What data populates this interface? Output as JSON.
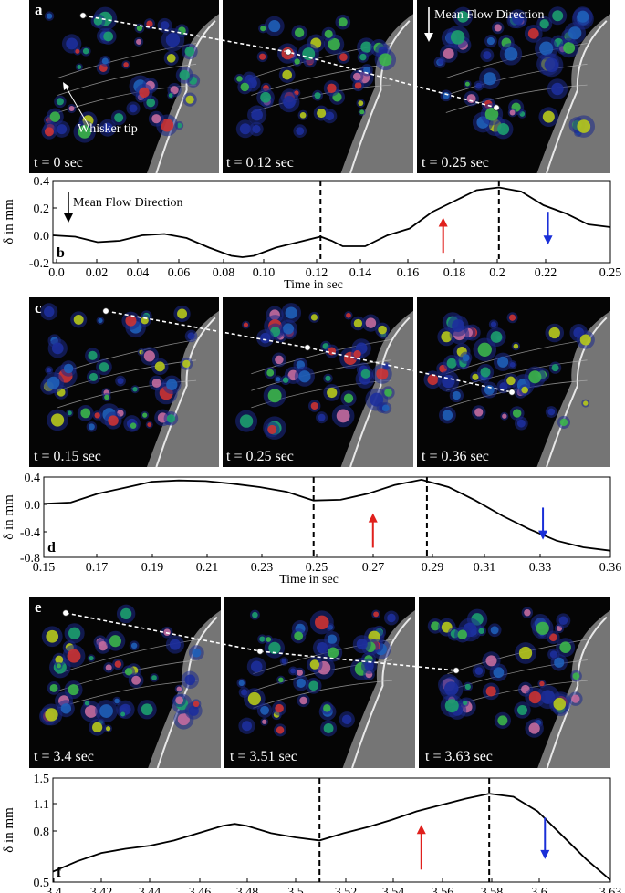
{
  "figure": {
    "image_rows": [
      {
        "label": "a",
        "times": [
          "t = 0 sec",
          "t = 0.12 sec",
          "t = 0.25 sec"
        ],
        "annotations": {
          "mean_flow": "Mean Flow Direction",
          "whisker_tip": "Whisker tip"
        }
      },
      {
        "label": "c",
        "times": [
          "t = 0.15 sec",
          "t = 0.25 sec",
          "t = 0.36 sec"
        ]
      },
      {
        "label": "e",
        "times": [
          "t = 3.4 sec",
          "t = 3.51 sec",
          "t = 3.63 sec"
        ]
      }
    ],
    "colors": {
      "red_arrow": "#e0201c",
      "blue_arrow": "#1a2fd8",
      "line": "#000000",
      "track": "#ffffff"
    }
  },
  "chart_data": [
    {
      "type": "line",
      "panel_label": "b",
      "xlabel": "Time in sec",
      "ylabel": "δ in mm",
      "xlim": [
        0,
        0.25
      ],
      "ylim": [
        -0.2,
        0.4
      ],
      "xticks": [
        "0.0",
        "0.02",
        "0.04",
        "0.06",
        "0.08",
        "0.10",
        "0.12",
        "0.14",
        "0.16",
        "0.18",
        "0.2",
        "0.22",
        "0.25"
      ],
      "yticks": [
        "0.4",
        "0.2",
        "0.0",
        "-0.2"
      ],
      "annotation": "Mean Flow Direction",
      "dashed_x": [
        0.12,
        0.2
      ],
      "red_arrow_x": 0.175,
      "blue_arrow_x": 0.222,
      "x": [
        0,
        0.01,
        0.02,
        0.03,
        0.04,
        0.05,
        0.06,
        0.07,
        0.08,
        0.085,
        0.09,
        0.1,
        0.11,
        0.12,
        0.125,
        0.13,
        0.14,
        0.15,
        0.16,
        0.17,
        0.18,
        0.19,
        0.2,
        0.21,
        0.22,
        0.23,
        0.24,
        0.25
      ],
      "y": [
        0,
        -0.01,
        -0.05,
        -0.04,
        0.0,
        0.01,
        -0.02,
        -0.09,
        -0.15,
        -0.16,
        -0.15,
        -0.09,
        -0.05,
        -0.01,
        -0.04,
        -0.08,
        -0.08,
        0.0,
        0.05,
        0.17,
        0.25,
        0.33,
        0.35,
        0.32,
        0.22,
        0.16,
        0.08,
        0.06
      ]
    },
    {
      "type": "line",
      "panel_label": "d",
      "xlabel": "Time in sec",
      "ylabel": "δ in mm",
      "xlim": [
        0.15,
        0.36
      ],
      "ylim": [
        -0.8,
        0.4
      ],
      "xticks": [
        "0.15",
        "0.17",
        "0.19",
        "0.21",
        "0.23",
        "0.25",
        "0.27",
        "0.29",
        "0.31",
        "0.33",
        "0.36"
      ],
      "yticks": [
        "0.4",
        "0.0",
        "-0.4",
        "-0.8"
      ],
      "dashed_x": [
        0.25,
        0.292
      ],
      "red_arrow_x": 0.272,
      "blue_arrow_x": 0.335,
      "x": [
        0.15,
        0.16,
        0.17,
        0.18,
        0.19,
        0.2,
        0.21,
        0.22,
        0.23,
        0.24,
        0.25,
        0.26,
        0.27,
        0.28,
        0.29,
        0.3,
        0.31,
        0.32,
        0.33,
        0.34,
        0.35,
        0.36
      ],
      "y": [
        0.0,
        0.02,
        0.15,
        0.24,
        0.33,
        0.35,
        0.34,
        0.3,
        0.25,
        0.18,
        0.05,
        0.06,
        0.15,
        0.28,
        0.36,
        0.25,
        0.05,
        -0.18,
        -0.38,
        -0.55,
        -0.65,
        -0.7
      ]
    },
    {
      "type": "line",
      "panel_label": "f",
      "xlabel": "Time in sec",
      "ylabel": "δ in mm",
      "xlim": [
        3.4,
        3.63
      ],
      "ylim": [
        0.5,
        1.5
      ],
      "xticks": [
        "3.4",
        "3.42",
        "3.44",
        "3.46",
        "3.48",
        "3.5",
        "3.52",
        "3.54",
        "3.56",
        "3.58",
        "3.6",
        "3.63"
      ],
      "yticks": [
        "1.5",
        "1.1",
        "0.8",
        "0.5"
      ],
      "dashed_x": [
        3.51,
        3.58
      ],
      "red_arrow_x": 3.552,
      "blue_arrow_x": 3.603,
      "x": [
        3.4,
        3.41,
        3.42,
        3.43,
        3.44,
        3.45,
        3.46,
        3.47,
        3.475,
        3.48,
        3.49,
        3.5,
        3.51,
        3.52,
        3.53,
        3.54,
        3.55,
        3.56,
        3.57,
        3.58,
        3.59,
        3.6,
        3.61,
        3.62,
        3.63
      ],
      "y": [
        0.6,
        0.7,
        0.78,
        0.82,
        0.85,
        0.9,
        0.97,
        1.04,
        1.06,
        1.04,
        0.97,
        0.93,
        0.9,
        0.97,
        1.03,
        1.1,
        1.18,
        1.24,
        1.3,
        1.35,
        1.32,
        1.18,
        0.95,
        0.72,
        0.52
      ]
    }
  ]
}
